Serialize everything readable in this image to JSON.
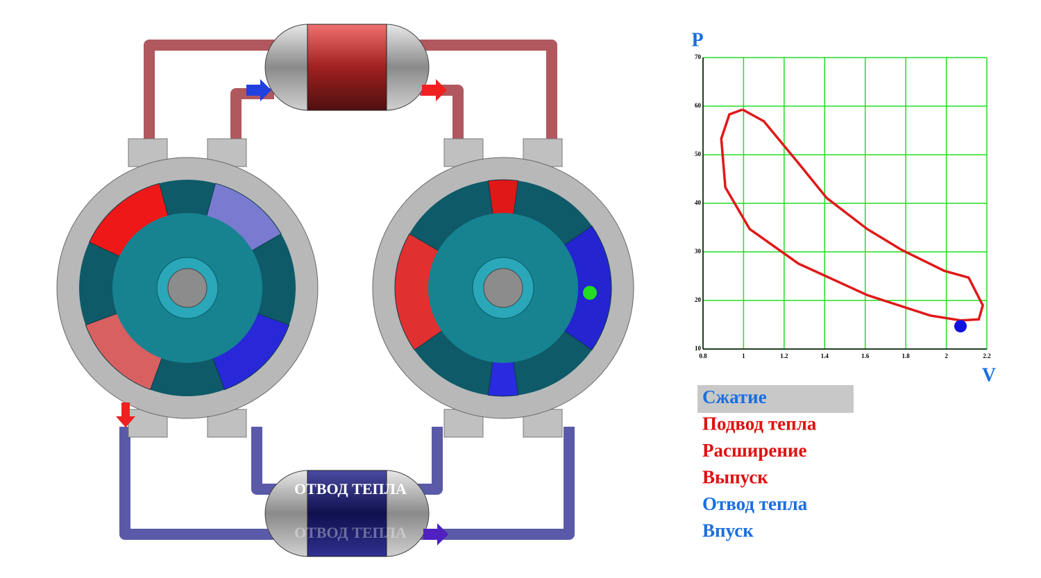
{
  "chart_data": {
    "type": "line",
    "x_label": "V",
    "y_label": "P",
    "x": [
      0.995,
      1.1,
      1.27,
      1.41,
      1.61,
      1.78,
      1.99,
      2.11,
      2.18,
      2.16,
      2.07,
      1.92,
      1.61,
      1.27,
      1.03,
      0.91,
      0.89,
      0.93,
      0.995
    ],
    "values": [
      59.3,
      56.9,
      48.3,
      41.1,
      34.7,
      30.4,
      26.1,
      24.7,
      19,
      16.1,
      15.9,
      16.9,
      21.1,
      27.6,
      34.7,
      43.3,
      53.3,
      58.3,
      59.3
    ],
    "color": "#e01818",
    "grid": true,
    "grid_color": "#22dd22",
    "xlim": [
      0.8,
      2.2
    ],
    "xticks": [
      0.8,
      1,
      1.2,
      1.4,
      1.6,
      1.8,
      2,
      2.2
    ],
    "ylim": [
      10,
      70
    ],
    "yticks": [
      10,
      20,
      30,
      40,
      50,
      60,
      70
    ],
    "marker": {
      "x": 2.07,
      "y": 14.7,
      "color": "#1010e0"
    }
  },
  "phases": {
    "active": 0,
    "items": [
      {
        "label": "Сжатие",
        "color": "#1a6fe0"
      },
      {
        "label": "Подвод тепла",
        "color": "#e01010"
      },
      {
        "label": "Расширение",
        "color": "#e01010"
      },
      {
        "label": "Выпуск",
        "color": "#e01010"
      },
      {
        "label": "Отвод тепла",
        "color": "#1a6fe0"
      },
      {
        "label": "Впуск",
        "color": "#1a6fe0"
      }
    ]
  },
  "cooler": {
    "label": "ОТВОД ТЕПЛА",
    "reflection": "ОТВОД ТЕПЛА"
  }
}
